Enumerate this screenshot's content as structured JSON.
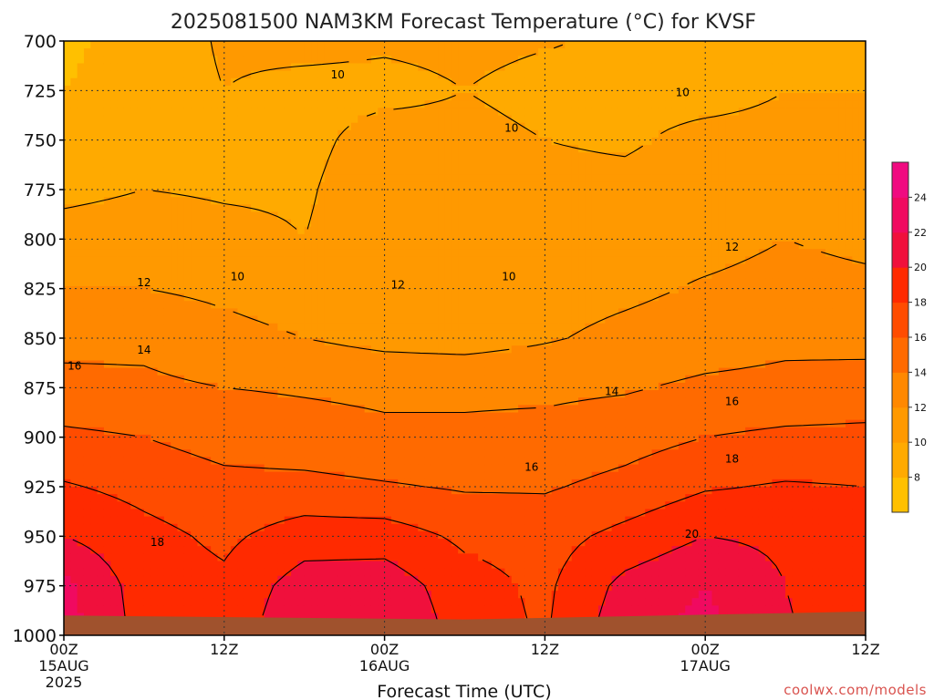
{
  "chart_data": {
    "type": "heatmap",
    "title": "2025081500 NAM3KM Forecast Temperature (°C) for KVSF",
    "xlabel": "Forecast Time (UTC)",
    "ylabel": "",
    "y_scale": "pressure",
    "y_ticks": [
      700,
      725,
      750,
      775,
      800,
      825,
      850,
      875,
      900,
      925,
      950,
      975,
      1000
    ],
    "y_tick_labels": [
      "700",
      "725",
      "750",
      "775",
      "800",
      "825",
      "850",
      "875",
      "900",
      "925",
      "950",
      "975",
      "1000"
    ],
    "ylim": [
      700,
      1000
    ],
    "xlim": [
      0,
      60
    ],
    "x_ticks": [
      {
        "hour": 0,
        "label": "00Z",
        "date": "15AUG",
        "year": "2025"
      },
      {
        "hour": 12,
        "label": "12Z",
        "date": "",
        "year": ""
      },
      {
        "hour": 24,
        "label": "00Z",
        "date": "16AUG",
        "year": ""
      },
      {
        "hour": 36,
        "label": "12Z",
        "date": "",
        "year": ""
      },
      {
        "hour": 48,
        "label": "00Z",
        "date": "17AUG",
        "year": ""
      },
      {
        "hour": 60,
        "label": "12Z",
        "date": "",
        "year": ""
      }
    ],
    "grid": true,
    "colorbar": {
      "levels": [
        6,
        8,
        10,
        12,
        14,
        16,
        18,
        20,
        22,
        24,
        26
      ],
      "labels": [
        "8",
        "10",
        "12",
        "14",
        "16",
        "18",
        "20",
        "22",
        "24"
      ],
      "colors": [
        "#FFC000",
        "#FFAA00",
        "#FF9900",
        "#FF8800",
        "#FF6A00",
        "#FF4C00",
        "#FF2A00",
        "#F0103C",
        "#F00A60",
        "#F00A80"
      ]
    },
    "contours": [
      {
        "value": 10,
        "label": "10"
      },
      {
        "value": 12,
        "label": "12"
      },
      {
        "value": 14,
        "label": "14"
      },
      {
        "value": 16,
        "label": "16"
      },
      {
        "value": 18,
        "label": "18"
      },
      {
        "value": 20,
        "label": "20"
      }
    ],
    "contour_labels": [
      {
        "label": "10",
        "hour": 20.5,
        "p": 717
      },
      {
        "label": "10",
        "hour": 33.5,
        "p": 744
      },
      {
        "label": "10",
        "hour": 46.3,
        "p": 726
      },
      {
        "label": "10",
        "hour": 13.0,
        "p": 819
      },
      {
        "label": "10",
        "hour": 33.3,
        "p": 819
      },
      {
        "label": "12",
        "hour": 6.0,
        "p": 822
      },
      {
        "label": "12",
        "hour": 25.0,
        "p": 823
      },
      {
        "label": "12",
        "hour": 50.0,
        "p": 804
      },
      {
        "label": "14",
        "hour": 6.0,
        "p": 856
      },
      {
        "label": "14",
        "hour": 41.0,
        "p": 877
      },
      {
        "label": "16",
        "hour": 0.8,
        "p": 864
      },
      {
        "label": "16",
        "hour": 35.0,
        "p": 915
      },
      {
        "label": "16",
        "hour": 50.0,
        "p": 882
      },
      {
        "label": "18",
        "hour": 7.0,
        "p": 953
      },
      {
        "label": "18",
        "hour": 50.0,
        "p": 911
      },
      {
        "label": "20",
        "hour": 47.0,
        "p": 949
      }
    ],
    "grid_temperature": {
      "hours": [
        0,
        6,
        12,
        18,
        24,
        30,
        36,
        42,
        48,
        54,
        60
      ],
      "pressures": [
        700,
        725,
        750,
        775,
        800,
        825,
        850,
        875,
        900,
        925,
        950,
        975,
        1000
      ],
      "values": [
        [
          7.5,
          9.0,
          10.2,
          10.4,
          10.2,
          10.3,
          10.1,
          9.8,
          9.6,
          9.8,
          9.7
        ],
        [
          8.0,
          9.2,
          10.0,
          9.6,
          9.6,
          10.0,
          9.6,
          9.6,
          9.5,
          10.0,
          10.0
        ],
        [
          8.5,
          9.6,
          10.0,
          9.6,
          10.6,
          10.4,
          10.0,
          9.8,
          10.4,
          10.4,
          10.6
        ],
        [
          9.5,
          10.0,
          9.8,
          9.8,
          11.0,
          10.6,
          10.4,
          10.4,
          10.8,
          11.2,
          11.4
        ],
        [
          10.8,
          11.0,
          10.5,
          10.0,
          11.0,
          10.6,
          10.7,
          11.2,
          11.4,
          12.0,
          11.6
        ],
        [
          12.0,
          12.0,
          11.6,
          11.0,
          11.2,
          11.0,
          11.2,
          11.6,
          12.2,
          12.6,
          12.4
        ],
        [
          13.4,
          13.5,
          12.6,
          12.0,
          11.4,
          11.2,
          11.8,
          12.5,
          13.0,
          13.5,
          13.4
        ],
        [
          14.6,
          14.4,
          14.0,
          13.8,
          13.6,
          13.6,
          13.6,
          13.8,
          14.4,
          14.6,
          14.8
        ],
        [
          16.4,
          16.0,
          15.2,
          14.8,
          14.4,
          14.4,
          14.6,
          15.2,
          16.0,
          16.4,
          16.5
        ],
        [
          18.2,
          17.4,
          16.6,
          16.6,
          16.2,
          15.8,
          15.8,
          16.6,
          17.8,
          18.2,
          18.0
        ],
        [
          20.0,
          18.6,
          17.6,
          19.0,
          19.0,
          17.6,
          17.2,
          18.6,
          20.0,
          19.6,
          18.6
        ],
        [
          22.5,
          19.0,
          18.4,
          21.0,
          21.2,
          18.8,
          17.6,
          20.6,
          22.0,
          20.0,
          18.8
        ],
        [
          23.0,
          19.2,
          18.6,
          22.0,
          22.4,
          19.0,
          17.8,
          21.4,
          22.6,
          20.2,
          19.0
        ]
      ]
    },
    "surface_fill_color": "#A0522D"
  },
  "credit": "coolwx.com/models"
}
